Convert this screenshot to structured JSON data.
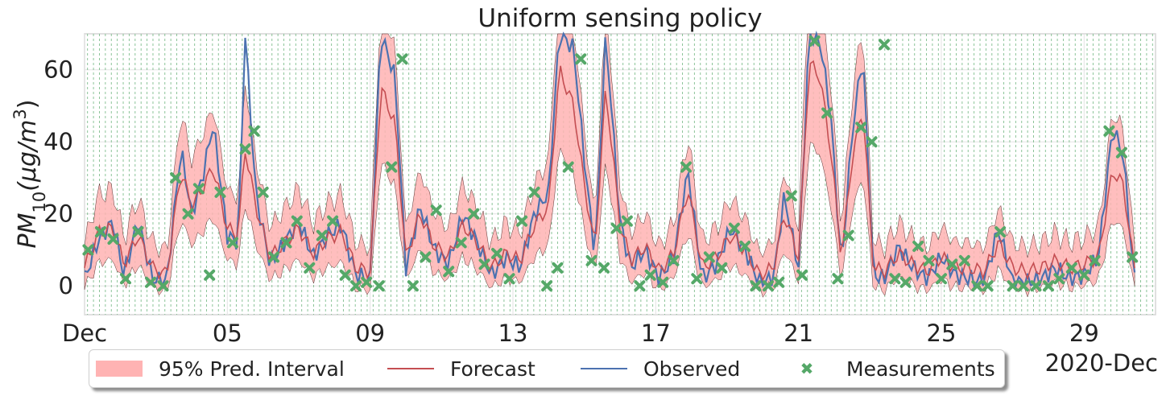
{
  "chart_data": {
    "type": "line",
    "title": "Uniform sensing policy",
    "ylabel_main": "PM",
    "ylabel_sub": "10",
    "ylabel_unit": "(μg/m",
    "ylabel_sup": "3",
    "ylabel_close": ")",
    "ylim": [
      -8,
      70
    ],
    "yticks": [
      0,
      20,
      40,
      60
    ],
    "ytick_labels": [
      "0",
      "20",
      "40",
      "60"
    ],
    "xlim_days": [
      1,
      31
    ],
    "xticks": [
      1,
      5,
      9,
      13,
      17,
      21,
      25,
      29
    ],
    "xtick_labels": [
      "Dec",
      "05",
      "09",
      "13",
      "17",
      "21",
      "25",
      "29"
    ],
    "x_offset_label": "2020-Dec",
    "grid": true,
    "legend_placement": "bottom",
    "sensing_interval_hours": 4,
    "colors": {
      "interval": "#ffb3b3",
      "forecast": "#c44e52",
      "observed": "#4c72b0",
      "measurements": "#55a868",
      "vlines": "#55a868"
    },
    "observed_daily_profile": [
      [
        1,
        2
      ],
      [
        1.4,
        13
      ],
      [
        1.8,
        18
      ],
      [
        2.1,
        3
      ],
      [
        2.5,
        18
      ],
      [
        2.9,
        2
      ],
      [
        3.3,
        1
      ],
      [
        3.7,
        38
      ],
      [
        4.0,
        20
      ],
      [
        4.3,
        30
      ],
      [
        4.6,
        45
      ],
      [
        5.0,
        14
      ],
      [
        5.3,
        12
      ],
      [
        5.5,
        70
      ],
      [
        5.8,
        25
      ],
      [
        6.2,
        6
      ],
      [
        6.6,
        12
      ],
      [
        7.0,
        18
      ],
      [
        7.4,
        8
      ],
      [
        7.8,
        14
      ],
      [
        8.2,
        17
      ],
      [
        8.6,
        3
      ],
      [
        9.0,
        2
      ],
      [
        9.3,
        70
      ],
      [
        9.7,
        58
      ],
      [
        10.0,
        5
      ],
      [
        10.4,
        22
      ],
      [
        10.8,
        10
      ],
      [
        11.2,
        6
      ],
      [
        11.6,
        20
      ],
      [
        12.0,
        12
      ],
      [
        12.4,
        3
      ],
      [
        12.8,
        8
      ],
      [
        13.2,
        5
      ],
      [
        13.6,
        20
      ],
      [
        14.0,
        26
      ],
      [
        14.3,
        70
      ],
      [
        14.7,
        66
      ],
      [
        15.0,
        35
      ],
      [
        15.3,
        8
      ],
      [
        15.6,
        70
      ],
      [
        16.0,
        18
      ],
      [
        16.3,
        5
      ],
      [
        16.7,
        10
      ],
      [
        17.1,
        2
      ],
      [
        17.5,
        8
      ],
      [
        17.9,
        32
      ],
      [
        18.3,
        2
      ],
      [
        18.7,
        6
      ],
      [
        19.1,
        16
      ],
      [
        19.5,
        10
      ],
      [
        19.9,
        1
      ],
      [
        20.3,
        2
      ],
      [
        20.6,
        25
      ],
      [
        21.0,
        5
      ],
      [
        21.3,
        70
      ],
      [
        21.6,
        68
      ],
      [
        21.9,
        48
      ],
      [
        22.2,
        5
      ],
      [
        22.5,
        42
      ],
      [
        22.8,
        65
      ],
      [
        23.1,
        3
      ],
      [
        23.4,
        2
      ],
      [
        23.8,
        11
      ],
      [
        24.2,
        5
      ],
      [
        24.6,
        2
      ],
      [
        25.0,
        8
      ],
      [
        25.4,
        3
      ],
      [
        25.8,
        2
      ],
      [
        26.2,
        1
      ],
      [
        26.6,
        16
      ],
      [
        27.0,
        1
      ],
      [
        27.4,
        1
      ],
      [
        27.8,
        2
      ],
      [
        28.2,
        5
      ],
      [
        28.6,
        2
      ],
      [
        29.0,
        3
      ],
      [
        29.4,
        8
      ],
      [
        29.8,
        44
      ],
      [
        30.1,
        36
      ],
      [
        30.4,
        2
      ]
    ],
    "forecast_daily_profile": [
      [
        1,
        5
      ],
      [
        1.4,
        15
      ],
      [
        1.8,
        16
      ],
      [
        2.1,
        6
      ],
      [
        2.5,
        14
      ],
      [
        2.9,
        5
      ],
      [
        3.3,
        3
      ],
      [
        3.7,
        32
      ],
      [
        4.0,
        22
      ],
      [
        4.3,
        27
      ],
      [
        4.6,
        33
      ],
      [
        5.0,
        16
      ],
      [
        5.3,
        14
      ],
      [
        5.5,
        38
      ],
      [
        5.8,
        22
      ],
      [
        6.2,
        8
      ],
      [
        6.6,
        12
      ],
      [
        7.0,
        16
      ],
      [
        7.4,
        9
      ],
      [
        7.8,
        13
      ],
      [
        8.2,
        15
      ],
      [
        8.6,
        5
      ],
      [
        9.0,
        4
      ],
      [
        9.3,
        55
      ],
      [
        9.7,
        45
      ],
      [
        10.0,
        8
      ],
      [
        10.4,
        20
      ],
      [
        10.8,
        11
      ],
      [
        11.2,
        8
      ],
      [
        11.6,
        17
      ],
      [
        12.0,
        12
      ],
      [
        12.4,
        5
      ],
      [
        12.8,
        9
      ],
      [
        13.2,
        7
      ],
      [
        13.6,
        17
      ],
      [
        14.0,
        22
      ],
      [
        14.3,
        60
      ],
      [
        14.7,
        50
      ],
      [
        15.0,
        28
      ],
      [
        15.3,
        10
      ],
      [
        15.6,
        55
      ],
      [
        16.0,
        17
      ],
      [
        16.3,
        7
      ],
      [
        16.7,
        11
      ],
      [
        17.1,
        4
      ],
      [
        17.5,
        9
      ],
      [
        17.9,
        27
      ],
      [
        18.3,
        5
      ],
      [
        18.7,
        8
      ],
      [
        19.1,
        14
      ],
      [
        19.5,
        10
      ],
      [
        19.9,
        3
      ],
      [
        20.3,
        5
      ],
      [
        20.6,
        20
      ],
      [
        21.0,
        8
      ],
      [
        21.3,
        62
      ],
      [
        21.6,
        58
      ],
      [
        21.9,
        38
      ],
      [
        22.2,
        8
      ],
      [
        22.5,
        35
      ],
      [
        22.8,
        50
      ],
      [
        23.1,
        5
      ],
      [
        23.4,
        4
      ],
      [
        23.8,
        9
      ],
      [
        24.2,
        6
      ],
      [
        24.6,
        4
      ],
      [
        25.0,
        8
      ],
      [
        25.4,
        5
      ],
      [
        25.8,
        5
      ],
      [
        26.2,
        4
      ],
      [
        26.6,
        12
      ],
      [
        27.0,
        5
      ],
      [
        27.4,
        4
      ],
      [
        27.8,
        5
      ],
      [
        28.2,
        7
      ],
      [
        28.6,
        5
      ],
      [
        29.0,
        6
      ],
      [
        29.4,
        8
      ],
      [
        29.8,
        32
      ],
      [
        30.1,
        28
      ],
      [
        30.4,
        5
      ]
    ],
    "measurements": [
      [
        1.1,
        10
      ],
      [
        1.45,
        15
      ],
      [
        1.8,
        13
      ],
      [
        2.15,
        2
      ],
      [
        2.5,
        15
      ],
      [
        2.85,
        1
      ],
      [
        3.2,
        0
      ],
      [
        3.55,
        30
      ],
      [
        3.9,
        20
      ],
      [
        4.2,
        27
      ],
      [
        4.5,
        3
      ],
      [
        4.8,
        26
      ],
      [
        5.15,
        12
      ],
      [
        5.5,
        38
      ],
      [
        5.75,
        43
      ],
      [
        6.0,
        26
      ],
      [
        6.3,
        8
      ],
      [
        6.65,
        12
      ],
      [
        6.95,
        18
      ],
      [
        7.3,
        5
      ],
      [
        7.65,
        14
      ],
      [
        7.95,
        18
      ],
      [
        8.3,
        3
      ],
      [
        8.6,
        0
      ],
      [
        8.9,
        1
      ],
      [
        9.25,
        0
      ],
      [
        9.6,
        33
      ],
      [
        9.9,
        63
      ],
      [
        10.2,
        0
      ],
      [
        10.55,
        8
      ],
      [
        10.85,
        21
      ],
      [
        11.2,
        4
      ],
      [
        11.55,
        12
      ],
      [
        11.9,
        20
      ],
      [
        12.2,
        6
      ],
      [
        12.55,
        9
      ],
      [
        12.9,
        2
      ],
      [
        13.25,
        18
      ],
      [
        13.6,
        26
      ],
      [
        13.95,
        0
      ],
      [
        14.25,
        5
      ],
      [
        14.55,
        33
      ],
      [
        14.9,
        63
      ],
      [
        15.2,
        7
      ],
      [
        15.55,
        5
      ],
      [
        15.9,
        16
      ],
      [
        16.2,
        18
      ],
      [
        16.55,
        0
      ],
      [
        16.85,
        3
      ],
      [
        17.2,
        1
      ],
      [
        17.5,
        7
      ],
      [
        17.85,
        33
      ],
      [
        18.15,
        2
      ],
      [
        18.5,
        8
      ],
      [
        18.85,
        5
      ],
      [
        19.2,
        16
      ],
      [
        19.5,
        11
      ],
      [
        19.8,
        0
      ],
      [
        20.15,
        0
      ],
      [
        20.45,
        1
      ],
      [
        20.8,
        25
      ],
      [
        21.1,
        3
      ],
      [
        21.45,
        68
      ],
      [
        21.8,
        48
      ],
      [
        22.1,
        2
      ],
      [
        22.4,
        14
      ],
      [
        22.75,
        44
      ],
      [
        23.05,
        40
      ],
      [
        23.4,
        67
      ],
      [
        23.7,
        2
      ],
      [
        24.0,
        1
      ],
      [
        24.35,
        11
      ],
      [
        24.65,
        7
      ],
      [
        25.0,
        2
      ],
      [
        25.3,
        6
      ],
      [
        25.65,
        7
      ],
      [
        26.0,
        0
      ],
      [
        26.3,
        0
      ],
      [
        26.65,
        15
      ],
      [
        27.0,
        0
      ],
      [
        27.3,
        0
      ],
      [
        27.65,
        0
      ],
      [
        28.0,
        0
      ],
      [
        28.3,
        2
      ],
      [
        28.65,
        5
      ],
      [
        29.0,
        3
      ],
      [
        29.3,
        7
      ],
      [
        29.7,
        43
      ],
      [
        30.05,
        37
      ],
      [
        30.35,
        8
      ]
    ]
  },
  "legend": {
    "interval": "95% Pred. Interval",
    "forecast": "Forecast",
    "observed": "Observed",
    "measurements": "Measurements"
  }
}
